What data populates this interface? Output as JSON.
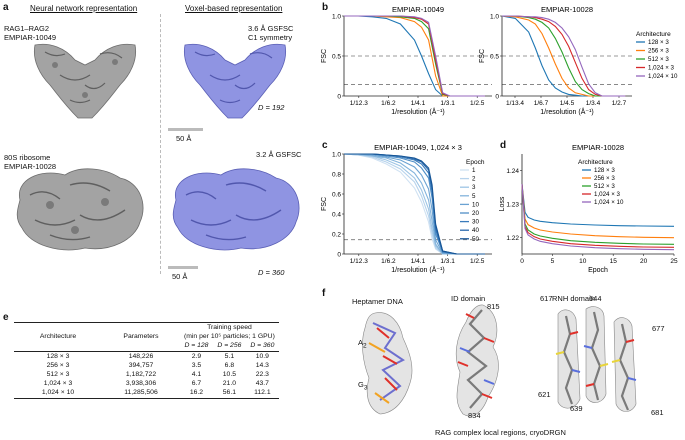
{
  "panel_a": {
    "letter": "a",
    "col1_title": "Neural network representation",
    "col2_title": "Voxel-based representation",
    "sample1_name": "RAG1–RAG2",
    "sample1_id": "EMPIAR-10049",
    "sample1_res": "3.6 Å GSFSC",
    "sample1_sym": "C1 symmetry",
    "sample1_D": "D = 192",
    "scale1": "50 Å",
    "sample2_name": "80S ribosome",
    "sample2_id": "EMPIAR-10028",
    "sample2_res": "3.2 Å GSFSC",
    "sample2_D": "D = 360",
    "scale2": "50 Å",
    "colors": {
      "nn_map": "#a0a0a0",
      "voxel_map": "#8a8fe0"
    }
  },
  "panel_b": {
    "letter": "b",
    "legend_title": "Architecture",
    "legend": [
      "128 × 3",
      "256 × 3",
      "512 × 3",
      "1,024 × 3",
      "1,024 × 10"
    ],
    "colors": [
      "#1f77b4",
      "#ff7f0e",
      "#2ca02c",
      "#d62728",
      "#9467bd"
    ]
  },
  "panel_c": {
    "letter": "c",
    "legend_title": "Epoch"
  },
  "panel_d": {
    "letter": "d"
  },
  "panel_e": {
    "letter": "e",
    "headers": {
      "architecture": "Architecture",
      "parameters": "Parameters",
      "speed": "Training speed",
      "speed_sub": "(min per 10⁵ particles; 1 GPU)",
      "d128": "D = 128",
      "d256": "D = 256",
      "d360": "D = 360"
    },
    "rows": [
      [
        "128 × 3",
        "148,226",
        "2.9",
        "5.1",
        "10.9"
      ],
      [
        "256 × 3",
        "394,757",
        "3.5",
        "6.8",
        "14.3"
      ],
      [
        "512 × 3",
        "1,182,722",
        "4.1",
        "10.5",
        "22.3"
      ],
      [
        "1,024 × 3",
        "3,938,306",
        "6.7",
        "21.0",
        "43.7"
      ],
      [
        "1,024 × 10",
        "11,285,506",
        "16.2",
        "56.1",
        "112.1"
      ]
    ]
  },
  "panel_f": {
    "letter": "f",
    "title1": "Heptamer DNA",
    "title2": "ID domain",
    "title3": "RNH domain",
    "label_a2": "A",
    "label_a2_sub": "2",
    "label_g3": "G",
    "label_g3_sub": "3",
    "id_815": "815",
    "id_834": "834",
    "rnh_617": "617",
    "rnh_644": "644",
    "rnh_677": "677",
    "rnh_621": "621",
    "rnh_639": "639",
    "rnh_681": "681",
    "caption": "RAG complex local regions, cryoDRGN"
  },
  "chart_data": [
    {
      "type": "line",
      "title": "EMPIAR-10049",
      "xlabel": "1/resolution (Å⁻¹)",
      "ylabel": "FSC",
      "x_ticks": [
        "1/12.3",
        "1/6.2",
        "1/4.1",
        "1/3.1",
        "1/2.5"
      ],
      "y_ticks": [
        "0",
        "0.5",
        "1.0"
      ],
      "ylim": [
        0,
        1.0
      ],
      "x": [
        0.0,
        0.04,
        0.08,
        0.12,
        0.16,
        0.2,
        0.22,
        0.24,
        0.26,
        0.28,
        0.3,
        0.32,
        0.36,
        0.4
      ],
      "series": [
        {
          "name": "128 × 3",
          "values": [
            1.0,
            1.0,
            0.99,
            0.97,
            0.9,
            0.7,
            0.5,
            0.28,
            0.08,
            0.0,
            0.0,
            0.0,
            0.0,
            0.0
          ]
        },
        {
          "name": "256 × 3",
          "values": [
            1.0,
            1.0,
            1.0,
            0.99,
            0.98,
            0.93,
            0.86,
            0.7,
            0.25,
            0.0,
            0.0,
            0.0,
            0.0,
            0.0
          ]
        },
        {
          "name": "512 × 3",
          "values": [
            1.0,
            1.0,
            1.0,
            1.0,
            0.99,
            0.97,
            0.93,
            0.84,
            0.4,
            0.02,
            0.0,
            0.0,
            0.0,
            0.0
          ]
        },
        {
          "name": "1,024 × 3",
          "values": [
            1.0,
            1.0,
            1.0,
            1.0,
            1.0,
            0.98,
            0.96,
            0.9,
            0.45,
            0.03,
            0.0,
            0.0,
            0.0,
            0.0
          ]
        },
        {
          "name": "1,024 × 10",
          "values": [
            1.0,
            1.0,
            1.0,
            1.0,
            1.0,
            0.99,
            0.97,
            0.92,
            0.5,
            0.04,
            0.0,
            0.0,
            0.0,
            0.0
          ]
        }
      ],
      "reference_lines": [
        0.5,
        0.143
      ]
    },
    {
      "type": "line",
      "title": "EMPIAR-10028",
      "xlabel": "1/resolution (Å⁻¹)",
      "ylabel": "FSC",
      "x_ticks": [
        "1/13.4",
        "1/6.7",
        "1/4.5",
        "1/3.4",
        "1/2.7"
      ],
      "y_ticks": [
        "0",
        "0.5",
        "1.0"
      ],
      "ylim": [
        0,
        1.0
      ],
      "x": [
        0.0,
        0.04,
        0.08,
        0.1,
        0.12,
        0.14,
        0.16,
        0.18,
        0.2,
        0.22,
        0.24,
        0.26,
        0.28,
        0.3,
        0.34,
        0.37
      ],
      "series": [
        {
          "name": "128 × 3",
          "values": [
            1.0,
            0.97,
            0.8,
            0.6,
            0.38,
            0.2,
            0.1,
            0.05,
            0.02,
            0.01,
            0.0,
            0.0,
            0.0,
            0.0,
            0.0,
            0.0
          ]
        },
        {
          "name": "256 × 3",
          "values": [
            1.0,
            0.99,
            0.95,
            0.9,
            0.78,
            0.6,
            0.4,
            0.22,
            0.1,
            0.04,
            0.02,
            0.0,
            0.0,
            0.0,
            0.0,
            0.0
          ]
        },
        {
          "name": "512 × 3",
          "values": [
            1.0,
            1.0,
            0.98,
            0.96,
            0.92,
            0.85,
            0.72,
            0.55,
            0.35,
            0.18,
            0.08,
            0.03,
            0.0,
            0.0,
            0.0,
            0.0
          ]
        },
        {
          "name": "1,024 × 3",
          "values": [
            1.0,
            1.0,
            0.99,
            0.98,
            0.96,
            0.93,
            0.87,
            0.77,
            0.62,
            0.42,
            0.22,
            0.08,
            0.02,
            0.0,
            0.0,
            0.0
          ]
        },
        {
          "name": "1,024 × 10",
          "values": [
            1.0,
            1.0,
            0.99,
            0.99,
            0.98,
            0.96,
            0.92,
            0.85,
            0.74,
            0.58,
            0.36,
            0.15,
            0.04,
            0.0,
            0.0,
            0.0
          ]
        }
      ],
      "reference_lines": [
        0.5,
        0.143
      ]
    },
    {
      "type": "line",
      "title": "EMPIAR-10049, 1,024 × 3",
      "xlabel": "1/resolution (Å⁻¹)",
      "ylabel": "FSC",
      "x_ticks": [
        "1/12.3",
        "1/6.2",
        "1/4.1",
        "1/3.1",
        "1/2.5"
      ],
      "y_ticks": [
        "0",
        "0.2",
        "0.4",
        "0.6",
        "0.8",
        "1.0"
      ],
      "ylim": [
        0,
        1.0
      ],
      "legend_title": "Epoch",
      "x": [
        0.0,
        0.04,
        0.08,
        0.12,
        0.16,
        0.2,
        0.22,
        0.24,
        0.25,
        0.26,
        0.28,
        0.32,
        0.36,
        0.4
      ],
      "series": [
        {
          "name": "1",
          "values": [
            1.0,
            0.99,
            0.96,
            0.9,
            0.82,
            0.66,
            0.52,
            0.32,
            0.15,
            0.05,
            0.0,
            0.0,
            0.0,
            0.0
          ]
        },
        {
          "name": "2",
          "values": [
            1.0,
            0.99,
            0.97,
            0.92,
            0.85,
            0.72,
            0.58,
            0.38,
            0.2,
            0.06,
            0.0,
            0.0,
            0.0,
            0.0
          ]
        },
        {
          "name": "3",
          "values": [
            1.0,
            0.99,
            0.98,
            0.94,
            0.88,
            0.76,
            0.64,
            0.45,
            0.25,
            0.08,
            0.0,
            0.0,
            0.0,
            0.0
          ]
        },
        {
          "name": "5",
          "values": [
            1.0,
            1.0,
            0.98,
            0.96,
            0.91,
            0.81,
            0.71,
            0.54,
            0.33,
            0.1,
            0.0,
            0.0,
            0.0,
            0.0
          ]
        },
        {
          "name": "10",
          "values": [
            1.0,
            1.0,
            0.99,
            0.97,
            0.94,
            0.87,
            0.79,
            0.65,
            0.44,
            0.14,
            0.01,
            0.0,
            0.0,
            0.0
          ]
        },
        {
          "name": "20",
          "values": [
            1.0,
            1.0,
            1.0,
            0.98,
            0.96,
            0.92,
            0.86,
            0.76,
            0.56,
            0.2,
            0.02,
            0.0,
            0.0,
            0.0
          ]
        },
        {
          "name": "30",
          "values": [
            1.0,
            1.0,
            1.0,
            0.99,
            0.97,
            0.94,
            0.9,
            0.81,
            0.62,
            0.24,
            0.02,
            0.0,
            0.0,
            0.0
          ]
        },
        {
          "name": "40",
          "values": [
            1.0,
            1.0,
            1.0,
            0.99,
            0.98,
            0.95,
            0.92,
            0.84,
            0.66,
            0.27,
            0.03,
            0.0,
            0.0,
            0.0
          ]
        },
        {
          "name": "50",
          "values": [
            1.0,
            1.0,
            1.0,
            0.99,
            0.98,
            0.96,
            0.93,
            0.86,
            0.69,
            0.3,
            0.03,
            0.0,
            0.0,
            0.0
          ]
        }
      ],
      "series_colors": [
        "#cfe1f2",
        "#b7d3ec",
        "#9ec5e5",
        "#84b4dc",
        "#6aa2d2",
        "#508fc7",
        "#3a7bbb",
        "#2767ab",
        "#165596"
      ],
      "reference_lines": [
        0.143
      ]
    },
    {
      "type": "line",
      "title": "EMPIAR-10028",
      "xlabel": "Epoch",
      "ylabel": "Loss",
      "x_ticks": [
        "0",
        "5",
        "10",
        "15",
        "20",
        "25"
      ],
      "y_ticks": [
        "1.22",
        "1.23",
        "1.24"
      ],
      "xlim": [
        0,
        25
      ],
      "ylim": [
        1.215,
        1.245
      ],
      "legend_title": "Architecture",
      "x": [
        0,
        0.5,
        1,
        2,
        3,
        5,
        8,
        12,
        16,
        20,
        25
      ],
      "series": [
        {
          "name": "128 × 3",
          "values": [
            1.236,
            1.2275,
            1.226,
            1.2252,
            1.2248,
            1.2244,
            1.224,
            1.2237,
            1.2235,
            1.2234,
            1.2233
          ]
        },
        {
          "name": "256 × 3",
          "values": [
            1.236,
            1.2255,
            1.2238,
            1.2228,
            1.2222,
            1.2216,
            1.221,
            1.2205,
            1.2202,
            1.22,
            1.2199
          ]
        },
        {
          "name": "512 × 3",
          "values": [
            1.236,
            1.224,
            1.2222,
            1.221,
            1.2204,
            1.2197,
            1.219,
            1.2185,
            1.2182,
            1.218,
            1.2179
          ]
        },
        {
          "name": "1,024 × 3",
          "values": [
            1.236,
            1.2232,
            1.2214,
            1.2202,
            1.2195,
            1.2188,
            1.2181,
            1.2176,
            1.2173,
            1.2171,
            1.217
          ]
        },
        {
          "name": "1,024 × 10",
          "values": [
            1.236,
            1.2226,
            1.2207,
            1.2195,
            1.2188,
            1.2181,
            1.2174,
            1.2169,
            1.2166,
            1.2164,
            1.2163
          ]
        }
      ]
    }
  ]
}
